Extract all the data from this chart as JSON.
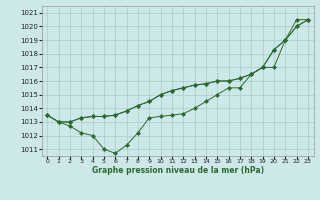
{
  "title": "Graphe pression niveau de la mer (hPa)",
  "bg_color": "#cce8e8",
  "grid_color": "#aacccc",
  "line_color": "#2d6a2d",
  "xlim": [
    -0.5,
    23.5
  ],
  "ylim": [
    1010.5,
    1021.5
  ],
  "yticks": [
    1011,
    1012,
    1013,
    1014,
    1015,
    1016,
    1017,
    1018,
    1019,
    1020,
    1021
  ],
  "xticks": [
    0,
    1,
    2,
    3,
    4,
    5,
    6,
    7,
    8,
    9,
    10,
    11,
    12,
    13,
    14,
    15,
    16,
    17,
    18,
    19,
    20,
    21,
    22,
    23
  ],
  "line1": [
    1013.5,
    1013.0,
    1012.7,
    1012.2,
    1012.0,
    1011.0,
    1010.7,
    1011.3,
    1012.2,
    1013.3,
    1013.4,
    1013.5,
    1013.6,
    1014.0,
    1014.5,
    1015.0,
    1015.5,
    1015.5,
    1016.5,
    1017.0,
    1017.0,
    1019.0,
    1020.0,
    1020.5
  ],
  "line2": [
    1013.5,
    1013.0,
    1013.0,
    1013.3,
    1013.4,
    1013.4,
    1013.5,
    1013.8,
    1014.2,
    1014.5,
    1015.0,
    1015.3,
    1015.5,
    1015.7,
    1015.8,
    1016.0,
    1016.0,
    1016.2,
    1016.5,
    1017.0,
    1018.3,
    1019.0,
    1020.0,
    1020.5
  ],
  "line3": [
    1013.5,
    1013.0,
    1013.0,
    1013.3,
    1013.4,
    1013.4,
    1013.5,
    1013.8,
    1014.2,
    1014.5,
    1015.0,
    1015.3,
    1015.5,
    1015.7,
    1015.8,
    1016.0,
    1016.0,
    1016.2,
    1016.5,
    1017.0,
    1018.3,
    1019.0,
    1020.5,
    1020.5
  ],
  "figsize": [
    3.2,
    2.0
  ],
  "dpi": 100
}
